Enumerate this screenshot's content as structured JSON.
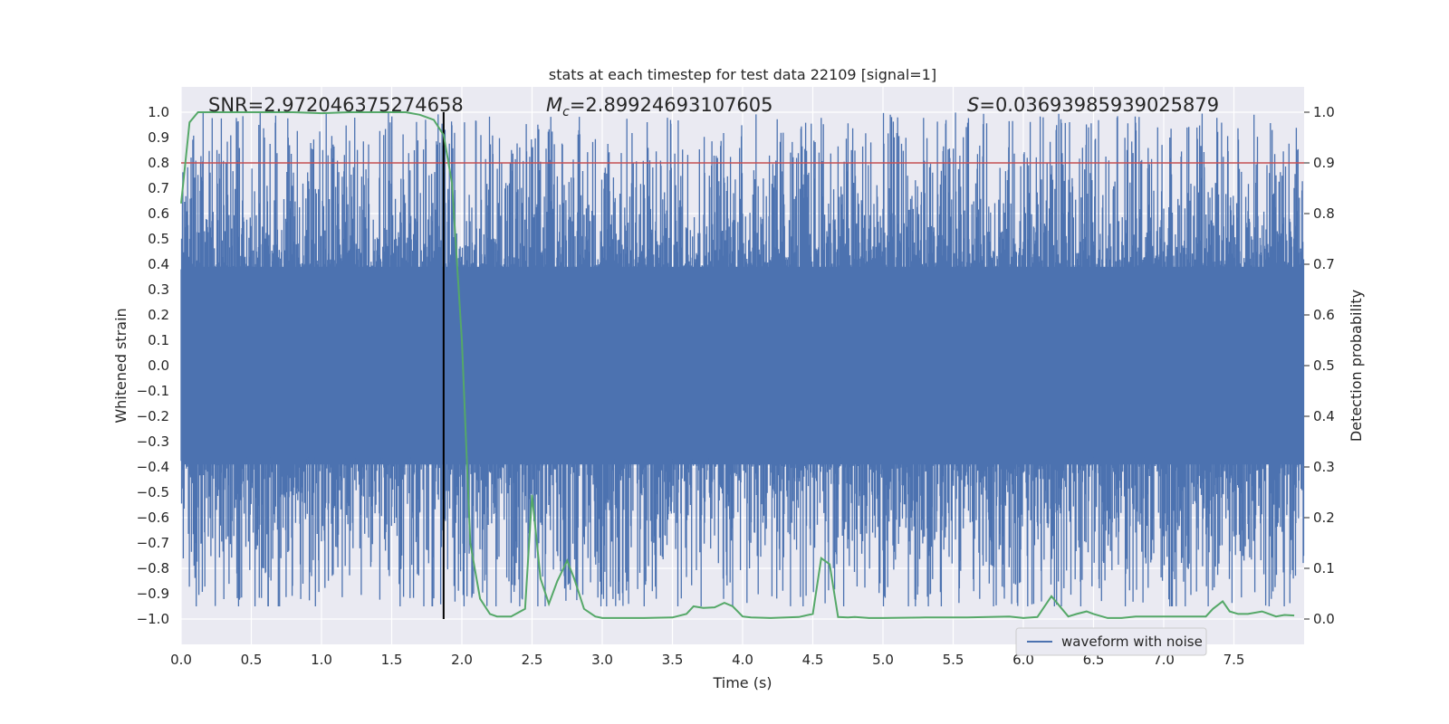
{
  "chart_data": {
    "type": "line",
    "title": "stats at each timestep for test data 22109 [signal=1]",
    "xlabel": "Time (s)",
    "ylabel": "Whitened strain",
    "ylabel_right": "Detection probability",
    "xlim": [
      0.0,
      8.0
    ],
    "ylim": [
      -1.1,
      1.1
    ],
    "ylim_right": [
      -0.05,
      1.05
    ],
    "x_ticks": [
      "0.0",
      "0.5",
      "1.0",
      "1.5",
      "2.0",
      "2.5",
      "3.0",
      "3.5",
      "4.0",
      "4.5",
      "5.0",
      "5.5",
      "6.0",
      "6.5",
      "7.0",
      "7.5"
    ],
    "y_ticks": [
      "1.0",
      "0.9",
      "0.8",
      "0.7",
      "0.6",
      "0.5",
      "0.4",
      "0.3",
      "0.2",
      "0.1",
      "0.0",
      "−0.1",
      "−0.2",
      "−0.3",
      "−0.4",
      "−0.5",
      "−0.6",
      "−0.7",
      "−0.8",
      "−0.9",
      "−1.0"
    ],
    "y_ticks_right": [
      "1.0",
      "0.9",
      "0.8",
      "0.7",
      "0.6",
      "0.5",
      "0.4",
      "0.3",
      "0.2",
      "0.1",
      "0.0"
    ],
    "annotations": {
      "snr": "SNR=2.972046375274658",
      "mc_symbol": "M",
      "mc_sub": "c",
      "mc_value": "=2.89924693107605",
      "s_symbol": "S",
      "s_value": "=0.03693985939025879"
    },
    "threshold": {
      "value": 0.9,
      "axis": "right",
      "color": "#c44e52"
    },
    "marker": {
      "x": 1.87,
      "color": "#000000"
    },
    "legend": [
      {
        "label": "waveform with noise",
        "color": "#4c72b0"
      }
    ],
    "series": [
      {
        "name": "waveform with noise",
        "axis": "left",
        "color": "#4c72b0",
        "style": "noise-envelope",
        "envelope_bounds": [
          -0.95,
          1.0
        ]
      },
      {
        "name": "detection probability",
        "axis": "right",
        "color": "#55a868",
        "x": [
          0.0,
          0.06,
          0.12,
          0.2,
          0.4,
          0.6,
          0.8,
          1.0,
          1.2,
          1.4,
          1.6,
          1.7,
          1.8,
          1.87,
          1.93,
          2.0,
          2.06,
          2.13,
          2.2,
          2.25,
          2.3,
          2.35,
          2.45,
          2.5,
          2.56,
          2.62,
          2.68,
          2.75,
          2.8,
          2.87,
          2.95,
          3.0,
          3.1,
          3.3,
          3.5,
          3.6,
          3.65,
          3.72,
          3.8,
          3.87,
          3.93,
          4.0,
          4.06,
          4.2,
          4.4,
          4.5,
          4.56,
          4.62,
          4.68,
          4.75,
          4.8,
          4.9,
          5.0,
          5.3,
          5.6,
          5.9,
          6.0,
          6.1,
          6.2,
          6.32,
          6.38,
          6.45,
          6.5,
          6.6,
          6.7,
          6.8,
          7.0,
          7.3,
          7.35,
          7.42,
          7.47,
          7.53,
          7.6,
          7.7,
          7.8,
          7.86,
          7.93
        ],
        "y": [
          0.82,
          0.98,
          1.0,
          1.0,
          1.0,
          1.0,
          1.0,
          0.998,
          1.0,
          1.0,
          1.0,
          0.995,
          0.985,
          0.955,
          0.86,
          0.55,
          0.15,
          0.04,
          0.01,
          0.005,
          0.005,
          0.005,
          0.02,
          0.245,
          0.08,
          0.03,
          0.075,
          0.115,
          0.08,
          0.02,
          0.005,
          0.002,
          0.002,
          0.002,
          0.003,
          0.01,
          0.025,
          0.022,
          0.023,
          0.032,
          0.025,
          0.005,
          0.003,
          0.002,
          0.004,
          0.01,
          0.12,
          0.108,
          0.004,
          0.003,
          0.004,
          0.002,
          0.002,
          0.003,
          0.003,
          0.005,
          0.002,
          0.004,
          0.045,
          0.005,
          0.01,
          0.015,
          0.01,
          0.002,
          0.002,
          0.005,
          0.005,
          0.005,
          0.02,
          0.035,
          0.015,
          0.01,
          0.01,
          0.015,
          0.005,
          0.008,
          0.007
        ]
      }
    ]
  }
}
